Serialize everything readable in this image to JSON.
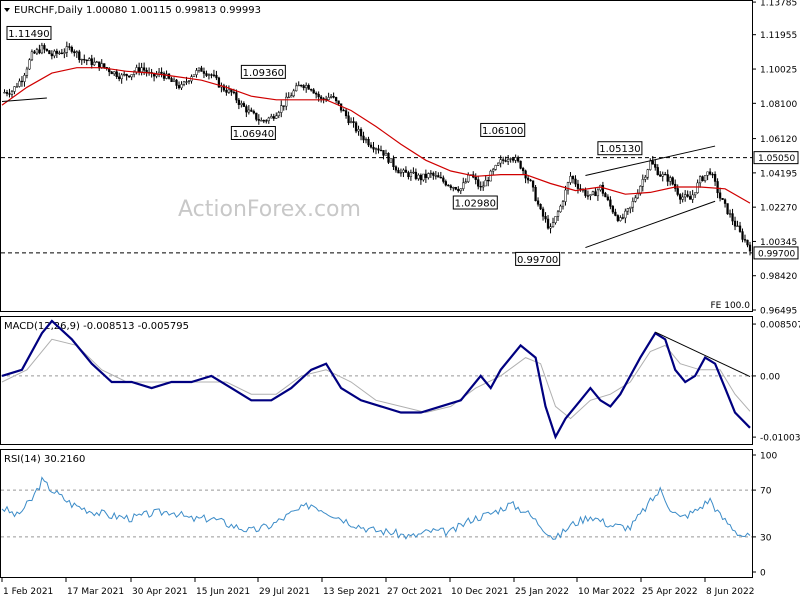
{
  "header": {
    "symbol_line": "EURCHF,Daily  1.00080 1.00115 0.99813 0.99993",
    "macd_label": "MACD(12,26,9) -0.008513 -0.005795",
    "rsi_label": "RSI(14) 30.2160",
    "watermark": "ActionForex.com",
    "fe_label": "FE 100.0"
  },
  "x_labels": [
    "1 Feb 2021",
    "17 Mar 2021",
    "30 Apr 2021",
    "15 Jun 2021",
    "29 Jul 2021",
    "13 Sep 2021",
    "27 Oct 2021",
    "10 Dec 2021",
    "25 Jan 2022",
    "10 Mar 2022",
    "25 Apr 2022",
    "8 Jun 2022"
  ],
  "chart_data": [
    {
      "type": "candlestick",
      "title": "EURCHF,Daily",
      "ylim": [
        0.96495,
        1.1379
      ],
      "y_ticks": [
        "1.13785",
        "1.11955",
        "1.10025",
        "1.08100",
        "1.06120",
        "1.04195",
        "1.02270",
        "1.00345",
        "0.98420",
        "0.96495"
      ],
      "price_labels": [
        "1.05050",
        "0.99700"
      ],
      "annotations": [
        {
          "label": "1.11490",
          "value": 1.1149
        },
        {
          "label": "1.09360",
          "value": 1.0936
        },
        {
          "label": "1.06940",
          "value": 1.0694
        },
        {
          "label": "1.06100",
          "value": 1.061
        },
        {
          "label": "1.02980",
          "value": 1.0298
        },
        {
          "label": "1.05130",
          "value": 1.0513
        },
        {
          "label": "0.99700",
          "value": 0.997
        }
      ],
      "horizontal_levels": [
        1.0505,
        0.997
      ],
      "close_path": [
        [
          0,
          1.087
        ],
        [
          4,
          1.088
        ],
        [
          8,
          1.095
        ],
        [
          12,
          1.108
        ],
        [
          16,
          1.112
        ],
        [
          20,
          1.108
        ],
        [
          24,
          1.11
        ],
        [
          28,
          1.112
        ],
        [
          32,
          1.106
        ],
        [
          36,
          1.104
        ],
        [
          40,
          1.102
        ],
        [
          44,
          1.099
        ],
        [
          48,
          1.096
        ],
        [
          52,
          1.098
        ],
        [
          56,
          1.101
        ],
        [
          60,
          1.096
        ],
        [
          64,
          1.098
        ],
        [
          68,
          1.093
        ],
        [
          72,
          1.09
        ],
        [
          76,
          1.097
        ],
        [
          80,
          1.1
        ],
        [
          84,
          1.097
        ],
        [
          88,
          1.09
        ],
        [
          92,
          1.087
        ],
        [
          96,
          1.08
        ],
        [
          100,
          1.075
        ],
        [
          104,
          1.071
        ],
        [
          108,
          1.073
        ],
        [
          112,
          1.079
        ],
        [
          116,
          1.086
        ],
        [
          120,
          1.092
        ],
        [
          124,
          1.09
        ],
        [
          128,
          1.083
        ],
        [
          132,
          1.085
        ],
        [
          136,
          1.078
        ],
        [
          140,
          1.07
        ],
        [
          144,
          1.063
        ],
        [
          148,
          1.058
        ],
        [
          152,
          1.055
        ],
        [
          156,
          1.048
        ],
        [
          160,
          1.042
        ],
        [
          164,
          1.041
        ],
        [
          168,
          1.039
        ],
        [
          172,
          1.041
        ],
        [
          176,
          1.038
        ],
        [
          180,
          1.035
        ],
        [
          184,
          1.033
        ],
        [
          188,
          1.041
        ],
        [
          192,
          1.033
        ],
        [
          196,
          1.041
        ],
        [
          200,
          1.048
        ],
        [
          204,
          1.052
        ],
        [
          208,
          1.046
        ],
        [
          212,
          1.036
        ],
        [
          216,
          1.02
        ],
        [
          220,
          1.01
        ],
        [
          224,
          1.023
        ],
        [
          228,
          1.04
        ],
        [
          232,
          1.033
        ],
        [
          236,
          1.028
        ],
        [
          240,
          1.034
        ],
        [
          244,
          1.023
        ],
        [
          248,
          1.015
        ],
        [
          252,
          1.022
        ],
        [
          256,
          1.035
        ],
        [
          260,
          1.048
        ],
        [
          264,
          1.041
        ],
        [
          268,
          1.038
        ],
        [
          272,
          1.029
        ],
        [
          276,
          1.027
        ],
        [
          280,
          1.038
        ],
        [
          284,
          1.043
        ],
        [
          288,
          1.028
        ],
        [
          292,
          1.018
        ],
        [
          296,
          1.008
        ],
        [
          300,
          1.0
        ]
      ],
      "ma_path": [
        [
          0,
          1.08
        ],
        [
          10,
          1.09
        ],
        [
          20,
          1.098
        ],
        [
          30,
          1.101
        ],
        [
          40,
          1.101
        ],
        [
          50,
          1.099
        ],
        [
          60,
          1.098
        ],
        [
          70,
          1.096
        ],
        [
          80,
          1.094
        ],
        [
          90,
          1.09
        ],
        [
          100,
          1.085
        ],
        [
          110,
          1.083
        ],
        [
          120,
          1.083
        ],
        [
          130,
          1.083
        ],
        [
          140,
          1.077
        ],
        [
          150,
          1.068
        ],
        [
          160,
          1.058
        ],
        [
          170,
          1.049
        ],
        [
          180,
          1.043
        ],
        [
          190,
          1.04
        ],
        [
          200,
          1.041
        ],
        [
          210,
          1.041
        ],
        [
          220,
          1.036
        ],
        [
          230,
          1.032
        ],
        [
          240,
          1.034
        ],
        [
          250,
          1.03
        ],
        [
          260,
          1.031
        ],
        [
          270,
          1.034
        ],
        [
          280,
          1.034
        ],
        [
          290,
          1.033
        ],
        [
          300,
          1.025
        ]
      ],
      "trend_lines": [
        {
          "from": [
            234,
            1.0405
          ],
          "to": [
            286,
            1.057
          ]
        },
        {
          "from": [
            234,
            1.0
          ],
          "to": [
            286,
            1.026
          ]
        },
        {
          "from": [
            0,
            1.082
          ],
          "to": [
            18,
            1.084
          ]
        }
      ]
    },
    {
      "type": "line",
      "title": "MACD(12,26,9)",
      "ylim": [
        -0.011,
        0.0095
      ],
      "y_ticks": [
        "0.008507",
        "0.00",
        "-0.010034"
      ],
      "series": [
        {
          "name": "MACD",
          "color": "#000080",
          "points": [
            [
              0,
              0.0
            ],
            [
              8,
              0.001
            ],
            [
              16,
              0.007
            ],
            [
              20,
              0.009
            ],
            [
              28,
              0.006
            ],
            [
              36,
              0.002
            ],
            [
              44,
              -0.001
            ],
            [
              52,
              -0.001
            ],
            [
              60,
              -0.002
            ],
            [
              68,
              -0.001
            ],
            [
              76,
              -0.001
            ],
            [
              84,
              0.0
            ],
            [
              92,
              -0.002
            ],
            [
              100,
              -0.004
            ],
            [
              108,
              -0.004
            ],
            [
              116,
              -0.002
            ],
            [
              124,
              0.001
            ],
            [
              130,
              0.002
            ],
            [
              136,
              -0.002
            ],
            [
              144,
              -0.004
            ],
            [
              152,
              -0.005
            ],
            [
              160,
              -0.006
            ],
            [
              168,
              -0.006
            ],
            [
              176,
              -0.005
            ],
            [
              184,
              -0.004
            ],
            [
              192,
              0.0
            ],
            [
              196,
              -0.002
            ],
            [
              200,
              0.001
            ],
            [
              208,
              0.005
            ],
            [
              214,
              0.003
            ],
            [
              218,
              -0.005
            ],
            [
              222,
              -0.01
            ],
            [
              226,
              -0.007
            ],
            [
              232,
              -0.004
            ],
            [
              236,
              -0.002
            ],
            [
              240,
              -0.004
            ],
            [
              244,
              -0.005
            ],
            [
              248,
              -0.003
            ],
            [
              256,
              0.003
            ],
            [
              262,
              0.007
            ],
            [
              266,
              0.006
            ],
            [
              270,
              0.001
            ],
            [
              274,
              -0.001
            ],
            [
              278,
              0.0
            ],
            [
              282,
              0.003
            ],
            [
              286,
              0.002
            ],
            [
              290,
              -0.002
            ],
            [
              294,
              -0.006
            ],
            [
              300,
              -0.0085
            ]
          ]
        },
        {
          "name": "Signal",
          "color": "#b0b0b0",
          "points": [
            [
              0,
              -0.001
            ],
            [
              10,
              0.001
            ],
            [
              20,
              0.006
            ],
            [
              30,
              0.005
            ],
            [
              40,
              0.001
            ],
            [
              50,
              -0.001
            ],
            [
              60,
              -0.001
            ],
            [
              70,
              -0.001
            ],
            [
              80,
              -0.001
            ],
            [
              90,
              -0.001
            ],
            [
              100,
              -0.003
            ],
            [
              110,
              -0.003
            ],
            [
              120,
              0.0
            ],
            [
              130,
              0.001
            ],
            [
              140,
              -0.001
            ],
            [
              150,
              -0.004
            ],
            [
              160,
              -0.005
            ],
            [
              170,
              -0.006
            ],
            [
              180,
              -0.005
            ],
            [
              190,
              -0.002
            ],
            [
              200,
              0.0
            ],
            [
              210,
              0.003
            ],
            [
              216,
              0.002
            ],
            [
              222,
              -0.005
            ],
            [
              228,
              -0.007
            ],
            [
              236,
              -0.004
            ],
            [
              244,
              -0.003
            ],
            [
              252,
              -0.001
            ],
            [
              260,
              0.004
            ],
            [
              266,
              0.005
            ],
            [
              272,
              0.002
            ],
            [
              280,
              0.001
            ],
            [
              288,
              0.001
            ],
            [
              294,
              -0.003
            ],
            [
              300,
              -0.0058
            ]
          ]
        }
      ],
      "trend_line": {
        "from": [
          262,
          0.0072
        ],
        "to": [
          300,
          -0.0001
        ]
      }
    },
    {
      "type": "line",
      "title": "RSI(14)",
      "ylim": [
        0,
        100
      ],
      "y_ticks": [
        "100",
        "70",
        "30",
        "0"
      ],
      "levels": [
        70,
        30
      ],
      "series": [
        {
          "name": "RSI",
          "color": "#3c8cc8",
          "points": [
            [
              0,
              55
            ],
            [
              6,
              48
            ],
            [
              12,
              62
            ],
            [
              16,
              78
            ],
            [
              20,
              70
            ],
            [
              28,
              58
            ],
            [
              36,
              52
            ],
            [
              44,
              48
            ],
            [
              52,
              46
            ],
            [
              60,
              50
            ],
            [
              68,
              52
            ],
            [
              76,
              45
            ],
            [
              84,
              46
            ],
            [
              92,
              40
            ],
            [
              100,
              35
            ],
            [
              108,
              40
            ],
            [
              116,
              50
            ],
            [
              124,
              58
            ],
            [
              132,
              50
            ],
            [
              140,
              42
            ],
            [
              148,
              36
            ],
            [
              156,
              34
            ],
            [
              164,
              30
            ],
            [
              172,
              35
            ],
            [
              180,
              34
            ],
            [
              188,
              45
            ],
            [
              196,
              50
            ],
            [
              204,
              58
            ],
            [
              210,
              52
            ],
            [
              216,
              40
            ],
            [
              222,
              28
            ],
            [
              228,
              40
            ],
            [
              236,
              48
            ],
            [
              244,
              40
            ],
            [
              252,
              38
            ],
            [
              260,
              60
            ],
            [
              264,
              70
            ],
            [
              268,
              55
            ],
            [
              272,
              46
            ],
            [
              278,
              52
            ],
            [
              284,
              62
            ],
            [
              288,
              48
            ],
            [
              292,
              40
            ],
            [
              296,
              32
            ],
            [
              300,
              30
            ]
          ]
        }
      ]
    }
  ]
}
